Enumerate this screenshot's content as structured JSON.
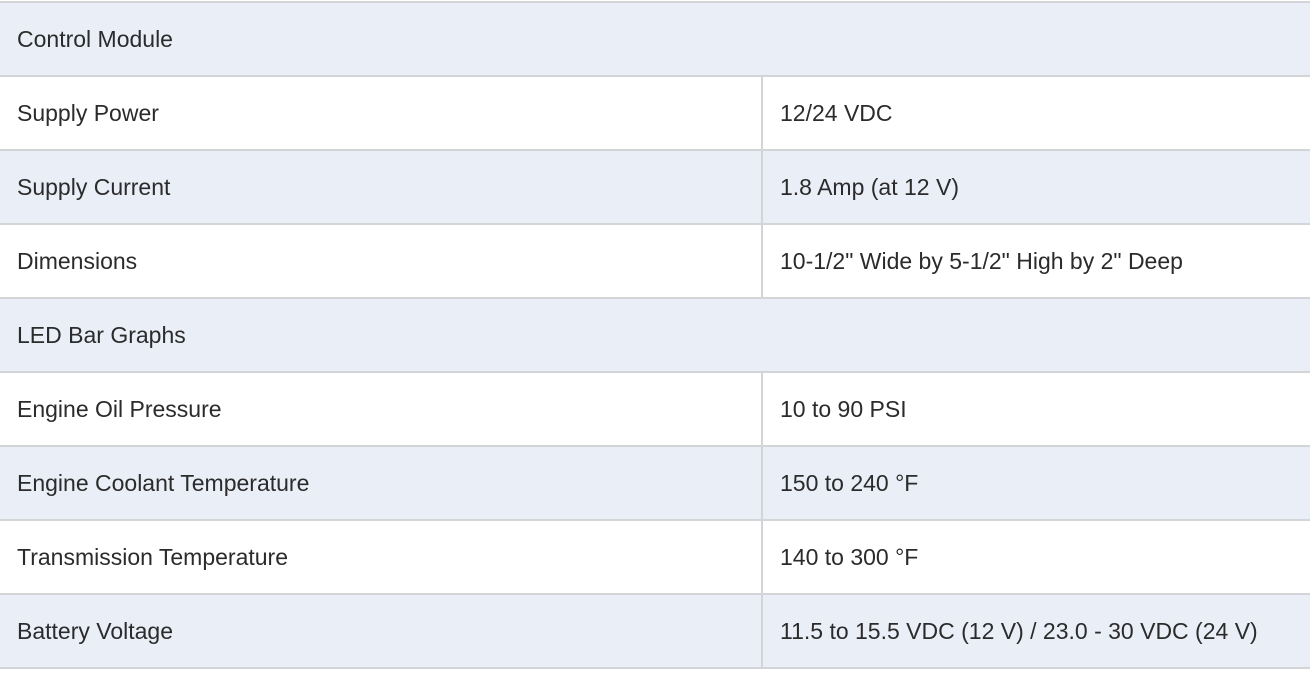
{
  "sections": [
    {
      "title": "Control Module",
      "rows": [
        {
          "label": "Supply Power",
          "value": "12/24 VDC"
        },
        {
          "label": "Supply Current",
          "value": "1.8 Amp (at 12 V)"
        },
        {
          "label": "Dimensions",
          "value": "10-1/2\" Wide by 5-1/2\" High by 2\" Deep"
        }
      ]
    },
    {
      "title": "LED Bar Graphs",
      "rows": [
        {
          "label": "Engine Oil Pressure",
          "value": "10 to 90 PSI"
        },
        {
          "label": "Engine Coolant Temperature",
          "value": "150 to 240 °F"
        },
        {
          "label": "Transmission Temperature",
          "value": "140 to 300 °F"
        },
        {
          "label": "Battery Voltage",
          "value": "11.5 to 15.5 VDC (12 V) / 23.0 - 30 VDC (24 V)"
        }
      ]
    }
  ]
}
